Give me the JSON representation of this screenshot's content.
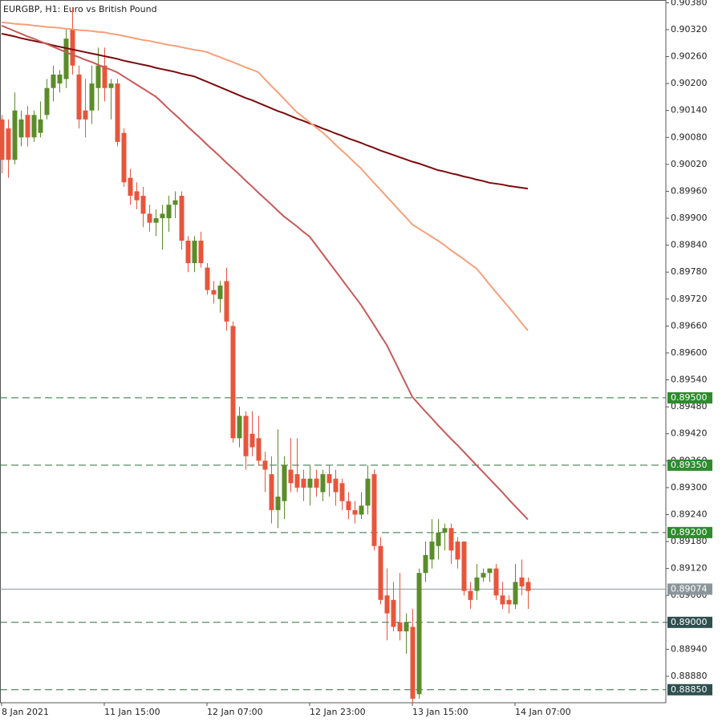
{
  "chart_data": {
    "type": "candlestick",
    "title": "EURGBP, H1:  Euro vs British Pound",
    "categories": [
      "8 Jan 2021",
      null,
      null,
      null,
      null,
      null,
      null,
      null,
      null,
      null,
      null,
      null,
      null,
      null,
      null,
      null,
      "11 Jan 15:00",
      null,
      null,
      null,
      null,
      null,
      null,
      null,
      null,
      null,
      null,
      null,
      null,
      null,
      null,
      null,
      "12 Jan 07:00",
      null,
      null,
      null,
      null,
      null,
      null,
      null,
      null,
      null,
      null,
      null,
      null,
      null,
      null,
      null,
      "12 Jan 23:00",
      null,
      null,
      null,
      null,
      null,
      null,
      null,
      null,
      null,
      null,
      null,
      null,
      null,
      null,
      null,
      "13 Jan 15:00",
      null,
      null,
      null,
      null,
      null,
      null,
      null,
      null,
      null,
      null,
      null,
      null,
      null,
      null,
      null,
      "14 Jan 07:00",
      null,
      null
    ],
    "open": [
      0.9012,
      0.901,
      0.9003,
      0.9008,
      0.9013,
      0.9008,
      0.9009,
      0.9013,
      0.9019,
      0.902,
      0.9021,
      0.9032,
      0.9022,
      0.9014,
      0.9014,
      0.9019,
      0.9024,
      0.9019,
      0.902,
      0.9009,
      0.8999,
      0.8996,
      0.8995,
      0.8991,
      0.8989,
      0.899,
      0.899,
      0.8993,
      0.8995,
      0.8985,
      0.898,
      0.8985,
      0.8979,
      0.8974,
      0.8972,
      0.8976,
      0.8966,
      0.8941,
      0.8946,
      0.8942,
      0.8941,
      0.8936,
      0.8933,
      0.8925,
      0.8927,
      0.8934,
      0.8933,
      0.8932,
      0.893,
      0.8932,
      0.8929,
      0.8933,
      0.8932,
      0.8931,
      0.8927,
      0.8925,
      0.8924,
      0.8926,
      0.8933,
      0.8917,
      0.8906,
      0.8905,
      0.89,
      0.8898,
      0.8899,
      0.8884,
      0.8911,
      0.8914,
      0.8917,
      0.892,
      0.8921,
      0.8918,
      0.8918,
      0.8907,
      0.8907,
      0.891,
      0.8911,
      0.8912,
      0.8906,
      0.8905,
      0.8904,
      0.891,
      0.8909
    ],
    "high": [
      0.9013,
      0.9012,
      0.9018,
      0.9014,
      0.9015,
      0.9014,
      0.9016,
      0.9021,
      0.9024,
      0.9023,
      0.9032,
      0.9037,
      0.9024,
      0.9021,
      0.9024,
      0.9028,
      0.9028,
      0.9021,
      0.9021,
      0.901,
      0.9001,
      0.8998,
      0.8997,
      0.8993,
      0.8992,
      0.8993,
      0.8995,
      0.8996,
      0.8996,
      0.8986,
      0.8986,
      0.8987,
      0.898,
      0.8976,
      0.8976,
      0.8979,
      0.8967,
      0.8948,
      0.8947,
      0.8947,
      0.8946,
      0.8938,
      0.8937,
      0.8943,
      0.8937,
      0.8941,
      0.8941,
      0.8934,
      0.8935,
      0.8934,
      0.8934,
      0.8935,
      0.8934,
      0.8932,
      0.8929,
      0.8927,
      0.8929,
      0.8935,
      0.8934,
      0.8919,
      0.8912,
      0.8909,
      0.8911,
      0.8902,
      0.8903,
      0.8912,
      0.8918,
      0.8923,
      0.8923,
      0.8922,
      0.8922,
      0.8919,
      0.8918,
      0.8909,
      0.8913,
      0.8912,
      0.8912,
      0.8913,
      0.8909,
      0.8906,
      0.8913,
      0.8914,
      0.891
    ],
    "low": [
      0.9,
      0.8999,
      0.9002,
      0.9006,
      0.9006,
      0.9007,
      0.9008,
      0.9012,
      0.9016,
      0.9018,
      0.9019,
      0.9022,
      0.901,
      0.9008,
      0.9011,
      0.9014,
      0.9016,
      0.9012,
      0.9006,
      0.8997,
      0.8993,
      0.8992,
      0.8988,
      0.8987,
      0.8986,
      0.8983,
      0.8987,
      0.899,
      0.8983,
      0.8978,
      0.8978,
      0.8979,
      0.8973,
      0.8971,
      0.8969,
      0.8965,
      0.894,
      0.8939,
      0.8934,
      0.8937,
      0.8935,
      0.8929,
      0.8922,
      0.8921,
      0.8923,
      0.8929,
      0.8929,
      0.8927,
      0.8926,
      0.8928,
      0.8927,
      0.8928,
      0.8926,
      0.8925,
      0.8923,
      0.8922,
      0.8923,
      0.8924,
      0.8916,
      0.8904,
      0.8896,
      0.8898,
      0.8896,
      0.8893,
      0.8882,
      0.8883,
      0.8909,
      0.8912,
      0.8914,
      0.8916,
      0.8913,
      0.8912,
      0.8906,
      0.8903,
      0.8905,
      0.8909,
      0.8909,
      0.8905,
      0.8903,
      0.8902,
      0.8903,
      0.8906,
      0.8903
    ],
    "close": [
      0.9003,
      0.9003,
      0.9014,
      0.9012,
      0.9008,
      0.9013,
      0.9012,
      0.9019,
      0.9022,
      0.9022,
      0.903,
      0.9024,
      0.9012,
      0.9012,
      0.902,
      0.9024,
      0.9019,
      0.902,
      0.9007,
      0.8998,
      0.8995,
      0.8994,
      0.8991,
      0.8989,
      0.899,
      0.8991,
      0.8993,
      0.8994,
      0.8985,
      0.898,
      0.8985,
      0.898,
      0.8974,
      0.8973,
      0.8975,
      0.8967,
      0.8941,
      0.8946,
      0.8937,
      0.8939,
      0.8936,
      0.8934,
      0.8925,
      0.8928,
      0.8935,
      0.8931,
      0.893,
      0.893,
      0.8932,
      0.893,
      0.8933,
      0.8931,
      0.8929,
      0.8927,
      0.8925,
      0.8924,
      0.8926,
      0.8932,
      0.8917,
      0.8905,
      0.8902,
      0.8899,
      0.8898,
      0.89,
      0.8883,
      0.8911,
      0.8915,
      0.8918,
      0.892,
      0.8921,
      0.8916,
      0.8914,
      0.8907,
      0.8905,
      0.891,
      0.8911,
      0.8912,
      0.8906,
      0.8904,
      0.8904,
      0.8909,
      0.8908,
      0.8907
    ],
    "up_color": "#5b8c2a",
    "down_color": "#e8553b",
    "lines": [
      {
        "color": "#7a0b0b",
        "values": [
          0.90311,
          0.90308,
          0.90305,
          0.90301,
          0.90298,
          0.90295,
          0.90292,
          0.90289,
          0.90285,
          0.90282,
          0.90279,
          0.90276,
          0.90273,
          0.9027,
          0.90267,
          0.90264,
          0.90261,
          0.90258,
          0.90255,
          0.90251,
          0.90248,
          0.90245,
          0.90242,
          0.90239,
          0.90235,
          0.90232,
          0.90229,
          0.90226,
          0.90222,
          0.90219,
          0.90216,
          0.9021,
          0.90204,
          0.90198,
          0.90192,
          0.90186,
          0.9018,
          0.90174,
          0.90168,
          0.90163,
          0.90157,
          0.90151,
          0.90145,
          0.90139,
          0.90134,
          0.90128,
          0.90122,
          0.90117,
          0.90111,
          0.90106,
          0.901,
          0.90095,
          0.90089,
          0.90084,
          0.90078,
          0.90073,
          0.90068,
          0.90062,
          0.90057,
          0.90051,
          0.90046,
          0.90041,
          0.90036,
          0.90031,
          0.90026,
          0.90022,
          0.90017,
          0.90012,
          0.90007,
          0.90004,
          0.9,
          0.89997,
          0.89993,
          0.8999,
          0.89986,
          0.89983,
          0.89979,
          0.89977,
          0.89975,
          0.89972,
          0.8997,
          0.89968,
          0.89966
        ]
      },
      {
        "color": "#f5a07a",
        "values": [
          0.90336,
          0.90335,
          0.90333,
          0.90332,
          0.90331,
          0.90329,
          0.90328,
          0.90326,
          0.90325,
          0.90324,
          0.90322,
          0.90321,
          0.90319,
          0.90318,
          0.90317,
          0.90315,
          0.90314,
          0.90311,
          0.90309,
          0.90306,
          0.90303,
          0.903,
          0.90297,
          0.90295,
          0.90292,
          0.90289,
          0.90286,
          0.90284,
          0.90281,
          0.90278,
          0.90275,
          0.90273,
          0.9027,
          0.90264,
          0.90259,
          0.90253,
          0.90248,
          0.90242,
          0.90236,
          0.90231,
          0.90225,
          0.9021,
          0.90195,
          0.90181,
          0.90166,
          0.90151,
          0.90136,
          0.90125,
          0.90114,
          0.90102,
          0.90091,
          0.90078,
          0.90064,
          0.90051,
          0.90038,
          0.90024,
          0.90011,
          0.89995,
          0.89979,
          0.89964,
          0.89948,
          0.89933,
          0.89917,
          0.89902,
          0.89886,
          0.89877,
          0.89868,
          0.89859,
          0.8985,
          0.8984,
          0.89829,
          0.89819,
          0.89809,
          0.89798,
          0.89788,
          0.89771,
          0.89753,
          0.89736,
          0.89719,
          0.89702,
          0.89685,
          0.89667,
          0.8965
        ]
      },
      {
        "color": "#c85a58",
        "values": [
          0.90329,
          0.90323,
          0.90317,
          0.90311,
          0.90305,
          0.903,
          0.90294,
          0.90288,
          0.90282,
          0.90276,
          0.9027,
          0.90264,
          0.90259,
          0.90253,
          0.90248,
          0.90242,
          0.90236,
          0.90231,
          0.90225,
          0.90216,
          0.90207,
          0.90198,
          0.90189,
          0.9018,
          0.90171,
          0.90158,
          0.90144,
          0.90131,
          0.90118,
          0.90104,
          0.90091,
          0.90078,
          0.90064,
          0.90051,
          0.90038,
          0.90024,
          0.90011,
          0.89998,
          0.89984,
          0.89971,
          0.89957,
          0.89944,
          0.89931,
          0.89917,
          0.89904,
          0.89893,
          0.89882,
          0.8987,
          0.89859,
          0.8984,
          0.89821,
          0.89802,
          0.89783,
          0.89764,
          0.89745,
          0.89726,
          0.89707,
          0.89685,
          0.89663,
          0.8964,
          0.89618,
          0.89589,
          0.8956,
          0.89531,
          0.89502,
          0.89486,
          0.8947,
          0.89455,
          0.89439,
          0.89424,
          0.89409,
          0.89395,
          0.8938,
          0.89365,
          0.8935,
          0.89335,
          0.8932,
          0.89305,
          0.8929,
          0.89274,
          0.89259,
          0.89244,
          0.89229
        ]
      }
    ],
    "levels": [
      {
        "value": 0.895,
        "label": "0.89500",
        "color": "#2e8b2e",
        "dashed": true
      },
      {
        "value": 0.8935,
        "label": "0.89350",
        "color": "#2e8b2e",
        "dashed": true
      },
      {
        "value": 0.892,
        "label": "0.89200",
        "color": "#2e8b2e",
        "dashed": true
      },
      {
        "value": 0.89074,
        "label": "0.89074",
        "color": "#8a969a",
        "dashed": false
      },
      {
        "value": 0.89,
        "label": "0.89000",
        "color": "#2f4f4f",
        "dashed": true
      },
      {
        "value": 0.8885,
        "label": "0.88850",
        "color": "#2f4f4f",
        "dashed": true
      }
    ],
    "ylim": [
      0.88821,
      0.90386
    ],
    "yticks": [
      {
        "value": 0.9038,
        "label": "0.90380"
      },
      {
        "value": 0.9032,
        "label": "0.90320"
      },
      {
        "value": 0.9026,
        "label": "0.90260"
      },
      {
        "value": 0.902,
        "label": "0.90200"
      },
      {
        "value": 0.9014,
        "label": "0.90140"
      },
      {
        "value": 0.9008,
        "label": "0.90080"
      },
      {
        "value": 0.9002,
        "label": "0.90020"
      },
      {
        "value": 0.8996,
        "label": "0.89960"
      },
      {
        "value": 0.899,
        "label": "0.89900"
      },
      {
        "value": 0.8984,
        "label": "0.89840"
      },
      {
        "value": 0.8978,
        "label": "0.89780"
      },
      {
        "value": 0.8972,
        "label": "0.89720"
      },
      {
        "value": 0.8966,
        "label": "0.89660"
      },
      {
        "value": 0.896,
        "label": "0.89600"
      },
      {
        "value": 0.8954,
        "label": "0.89540"
      },
      {
        "value": 0.8948,
        "label": "0.89480"
      },
      {
        "value": 0.8942,
        "label": "0.89420"
      },
      {
        "value": 0.8936,
        "label": "0.89360"
      },
      {
        "value": 0.893,
        "label": "0.89300"
      },
      {
        "value": 0.8924,
        "label": "0.89240"
      },
      {
        "value": 0.8918,
        "label": "0.89180"
      },
      {
        "value": 0.8912,
        "label": "0.89120"
      },
      {
        "value": 0.8906,
        "label": "0.89060"
      },
      {
        "value": 0.89,
        "label": "0.89000"
      },
      {
        "value": 0.8894,
        "label": "0.88940"
      },
      {
        "value": 0.8888,
        "label": "0.88880"
      }
    ]
  }
}
